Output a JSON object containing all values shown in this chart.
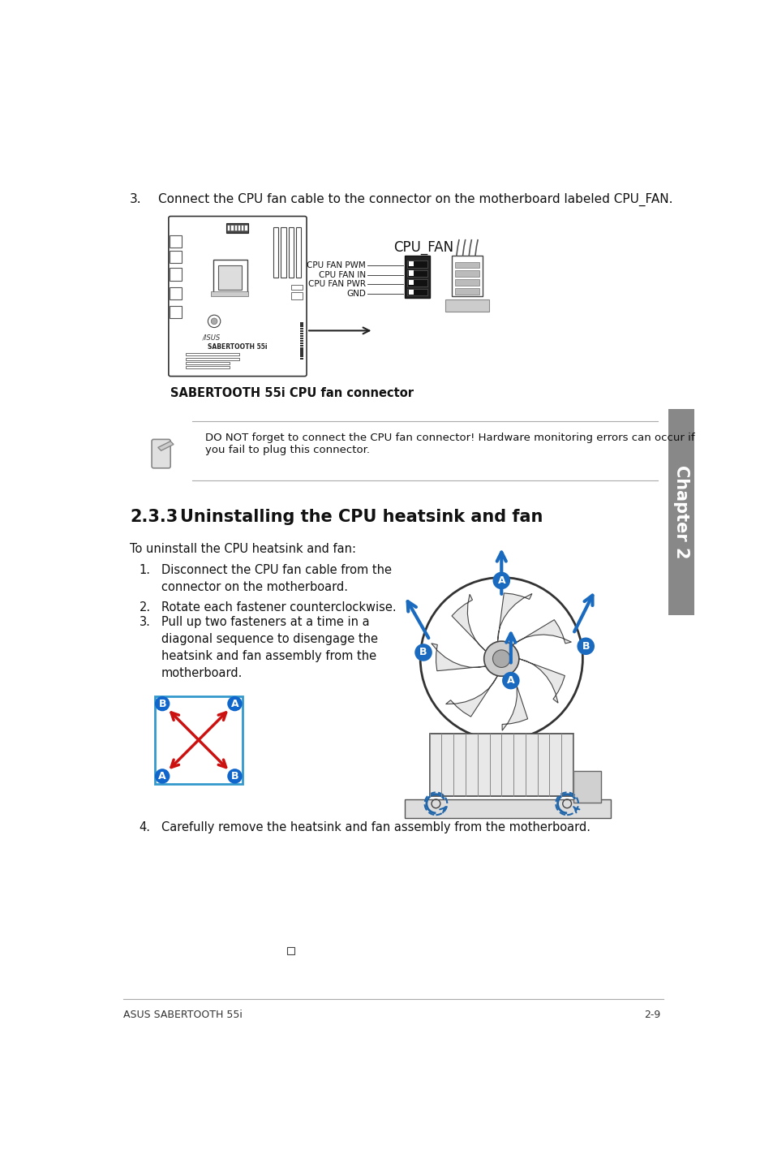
{
  "bg_color": "#ffffff",
  "text_color": "#111111",
  "sidebar_color": "#808080",
  "sidebar_text": "Chapter 2",
  "footer_left": "ASUS SABERTOOTH 55i",
  "footer_right": "2-9",
  "step3_top": "3.    Connect the CPU fan cable to the connector on the motherboard labeled CPU_FAN.",
  "caption_bold": "SABERTOOTH 55i CPU fan connector",
  "cpu_fan_label": "CPU_FAN",
  "pin_labels": [
    "CPU FAN PWM",
    "CPU FAN IN",
    "CPU FAN PWR",
    "GND"
  ],
  "note_text1": "DO NOT forget to connect the CPU fan connector! Hardware monitoring errors can occur if",
  "note_text2": "you fail to plug this connector.",
  "section_number": "2.3.3",
  "section_title": "Uninstalling the CPU heatsink and fan",
  "intro_text": "To uninstall the CPU heatsink and fan:",
  "step1_num": "1.",
  "step1_text": "Disconnect the CPU fan cable from the\nconnector on the motherboard.",
  "step2_num": "2.",
  "step2_text": "Rotate each fastener counterclockwise.",
  "step3_num": "3.",
  "step3b_text": "Pull up two fasteners at a time in a\ndiagonal sequence to disengage the\nheatsink and fan assembly from the\nmotherboard.",
  "step4_num": "4.",
  "step4_text": "Carefully remove the heatsink and fan assembly from the motherboard."
}
